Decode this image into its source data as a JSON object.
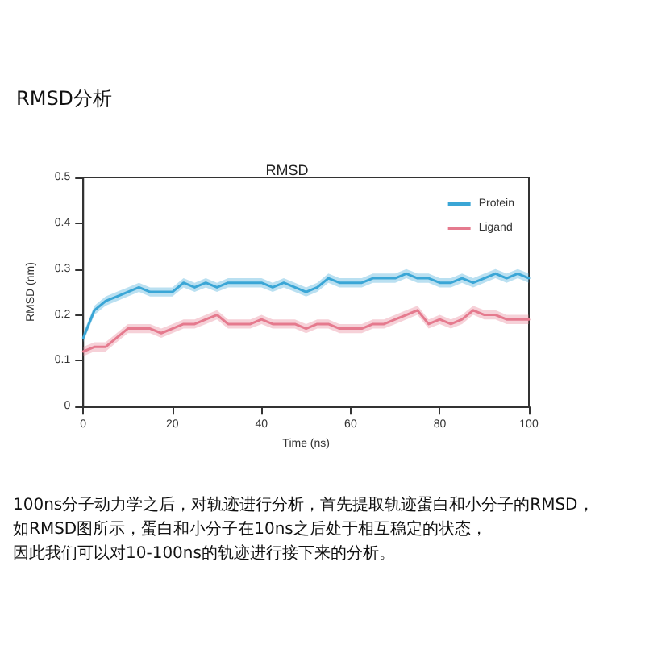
{
  "chart_data": {
    "type": "line",
    "title": "RMSD",
    "xlabel": "Time (ns)",
    "ylabel": "RMSD (nm)",
    "annotations": [
      "RMSD分析",
      "100ns分子动力学之后，对轨迹进行分析，首先提取轨迹蛋白和小分子的RMSD，",
      "如RMSD图所示，蛋白和小分子在10ns之后处于相互稳定的状态，",
      "因此我们可以对10-100ns的轨迹进行接下来的分析。"
    ],
    "x": [
      0,
      2.5,
      5,
      7.5,
      10,
      12.5,
      15,
      17.5,
      20,
      22.5,
      25,
      27.5,
      30,
      32.5,
      35,
      37.5,
      40,
      42.5,
      45,
      47.5,
      50,
      52.5,
      55,
      57.5,
      60,
      62.5,
      65,
      67.5,
      70,
      72.5,
      75,
      77.5,
      80,
      82.5,
      85,
      87.5,
      90,
      92.5,
      95,
      97.5,
      100
    ],
    "series": [
      {
        "name": "Protein",
        "color": "#3aa6d6",
        "values": [
          0.15,
          0.21,
          0.23,
          0.24,
          0.25,
          0.26,
          0.25,
          0.25,
          0.25,
          0.27,
          0.26,
          0.27,
          0.26,
          0.27,
          0.27,
          0.27,
          0.27,
          0.26,
          0.27,
          0.26,
          0.25,
          0.26,
          0.28,
          0.27,
          0.27,
          0.27,
          0.28,
          0.28,
          0.28,
          0.29,
          0.28,
          0.28,
          0.27,
          0.27,
          0.28,
          0.27,
          0.28,
          0.29,
          0.28,
          0.29,
          0.28
        ],
        "lower": [
          0.14,
          0.2,
          0.22,
          0.23,
          0.24,
          0.25,
          0.24,
          0.24,
          0.24,
          0.26,
          0.25,
          0.26,
          0.25,
          0.26,
          0.26,
          0.26,
          0.26,
          0.25,
          0.26,
          0.25,
          0.24,
          0.25,
          0.27,
          0.26,
          0.26,
          0.26,
          0.27,
          0.27,
          0.27,
          0.28,
          0.27,
          0.27,
          0.26,
          0.26,
          0.27,
          0.26,
          0.27,
          0.28,
          0.27,
          0.28,
          0.27
        ],
        "upper": [
          0.16,
          0.22,
          0.24,
          0.25,
          0.26,
          0.27,
          0.26,
          0.26,
          0.26,
          0.28,
          0.27,
          0.28,
          0.27,
          0.28,
          0.28,
          0.28,
          0.28,
          0.27,
          0.28,
          0.27,
          0.26,
          0.27,
          0.29,
          0.28,
          0.28,
          0.28,
          0.29,
          0.29,
          0.29,
          0.3,
          0.29,
          0.29,
          0.28,
          0.28,
          0.29,
          0.28,
          0.29,
          0.3,
          0.29,
          0.3,
          0.29
        ]
      },
      {
        "name": "Ligand",
        "color": "#e57a8e",
        "values": [
          0.12,
          0.13,
          0.13,
          0.15,
          0.17,
          0.17,
          0.17,
          0.16,
          0.17,
          0.18,
          0.18,
          0.19,
          0.2,
          0.18,
          0.18,
          0.18,
          0.19,
          0.18,
          0.18,
          0.18,
          0.17,
          0.18,
          0.18,
          0.17,
          0.17,
          0.17,
          0.18,
          0.18,
          0.19,
          0.2,
          0.21,
          0.18,
          0.19,
          0.18,
          0.19,
          0.21,
          0.2,
          0.2,
          0.19,
          0.19,
          0.19
        ],
        "lower": [
          0.11,
          0.12,
          0.12,
          0.14,
          0.16,
          0.16,
          0.16,
          0.15,
          0.16,
          0.17,
          0.17,
          0.18,
          0.19,
          0.17,
          0.17,
          0.17,
          0.18,
          0.17,
          0.17,
          0.17,
          0.16,
          0.17,
          0.17,
          0.16,
          0.16,
          0.16,
          0.17,
          0.17,
          0.18,
          0.19,
          0.2,
          0.17,
          0.18,
          0.17,
          0.18,
          0.2,
          0.19,
          0.19,
          0.18,
          0.18,
          0.18
        ],
        "upper": [
          0.13,
          0.14,
          0.14,
          0.16,
          0.18,
          0.18,
          0.18,
          0.17,
          0.18,
          0.19,
          0.19,
          0.2,
          0.21,
          0.19,
          0.19,
          0.19,
          0.2,
          0.19,
          0.19,
          0.19,
          0.18,
          0.19,
          0.19,
          0.18,
          0.18,
          0.18,
          0.19,
          0.19,
          0.2,
          0.21,
          0.22,
          0.19,
          0.2,
          0.19,
          0.2,
          0.22,
          0.21,
          0.21,
          0.2,
          0.2,
          0.2
        ]
      }
    ],
    "xlim": [
      0,
      100
    ],
    "xticks": [
      0,
      20,
      40,
      60,
      80,
      100
    ],
    "ylim": [
      0,
      0.5
    ],
    "yticks": [
      0,
      0.1,
      0.2,
      0.3,
      0.4,
      0.5
    ],
    "grid": false,
    "legend": "top right",
    "marker": "none",
    "line_style": "solid"
  }
}
